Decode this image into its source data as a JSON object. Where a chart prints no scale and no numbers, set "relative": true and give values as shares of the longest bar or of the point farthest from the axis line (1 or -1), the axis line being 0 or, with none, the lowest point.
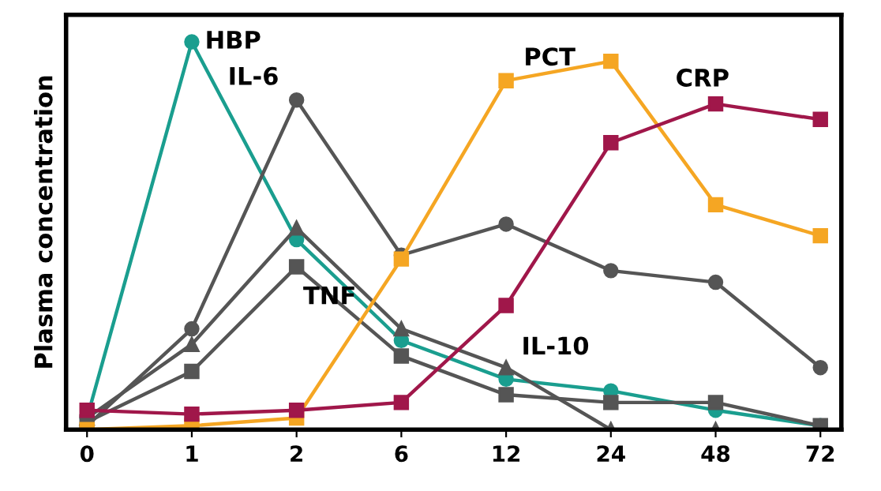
{
  "chart_data": {
    "type": "line",
    "relative": true,
    "ylabel": "Plasma concentration",
    "categories": [
      "0",
      "1",
      "2",
      "6",
      "12",
      "24",
      "48",
      "72"
    ],
    "line_style": "solid",
    "grid": false,
    "legend": false,
    "series": [
      {
        "name": "HBP",
        "color": "#1a9e8f",
        "marker": "circle",
        "values": [
          0.03,
          1.0,
          0.49,
          0.23,
          0.13,
          0.1,
          0.05,
          0.01
        ]
      },
      {
        "name": "IL-6",
        "color": "#555555",
        "marker": "circle",
        "values": [
          0.01,
          0.26,
          0.85,
          0.45,
          0.53,
          0.41,
          0.38,
          0.16
        ]
      },
      {
        "name": "IL-10",
        "color": "#555555",
        "marker": "triangle",
        "values": [
          0.03,
          0.22,
          0.52,
          0.26,
          0.16,
          0.0,
          0.0,
          0.0
        ]
      },
      {
        "name": "TNF",
        "color": "#555555",
        "marker": "square",
        "values": [
          0.02,
          0.15,
          0.42,
          0.19,
          0.09,
          0.07,
          0.07,
          0.01
        ]
      },
      {
        "name": "PCT",
        "color": "#f5a623",
        "marker": "square",
        "values": [
          0.0,
          0.01,
          0.03,
          0.44,
          0.9,
          0.95,
          0.58,
          0.5
        ]
      },
      {
        "name": "CRP",
        "color": "#a0174a",
        "marker": "square",
        "values": [
          0.05,
          0.04,
          0.05,
          0.07,
          0.32,
          0.74,
          0.84,
          0.8
        ]
      }
    ]
  }
}
